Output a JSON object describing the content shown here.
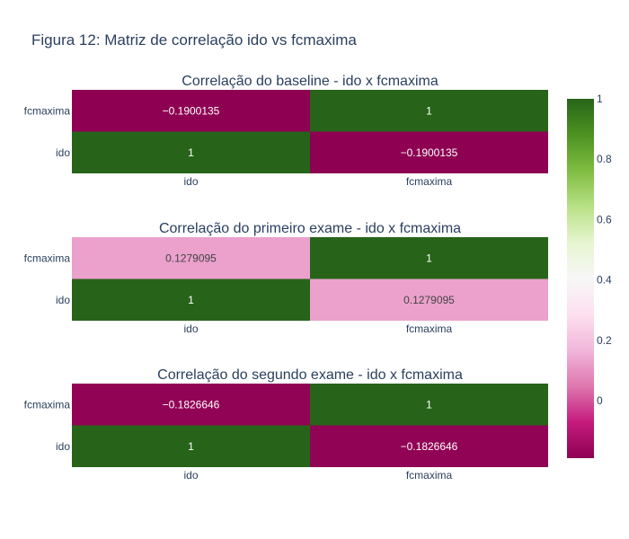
{
  "figure_title": "Figura 12: Matriz de correlação ido vs fcmaxima",
  "chart_data": [
    {
      "type": "heatmap",
      "title": "Correlação do baseline - ido x fcmaxima",
      "x": [
        "ido",
        "fcmaxima"
      ],
      "y": [
        "ido",
        "fcmaxima"
      ],
      "z": [
        [
          1,
          -0.1900135
        ],
        [
          -0.1900135,
          1
        ]
      ],
      "cell_text": [
        [
          "1",
          "−0.1900135"
        ],
        [
          "−0.1900135",
          "1"
        ]
      ]
    },
    {
      "type": "heatmap",
      "title": "Correlação do primeiro exame - ido x fcmaxima",
      "x": [
        "ido",
        "fcmaxima"
      ],
      "y": [
        "ido",
        "fcmaxima"
      ],
      "z": [
        [
          1,
          0.1279095
        ],
        [
          0.1279095,
          1
        ]
      ],
      "cell_text": [
        [
          "1",
          "0.1279095"
        ],
        [
          "0.1279095",
          "1"
        ]
      ]
    },
    {
      "type": "heatmap",
      "title": "Correlação do segundo exame - ido x fcmaxima",
      "x": [
        "ido",
        "fcmaxima"
      ],
      "y": [
        "ido",
        "fcmaxima"
      ],
      "z": [
        [
          1,
          -0.1826646
        ],
        [
          -0.1826646,
          1
        ]
      ],
      "cell_text": [
        [
          "1",
          "−0.1826646"
        ],
        [
          "−0.1826646",
          "1"
        ]
      ]
    }
  ],
  "colorbar": {
    "colorscale": "PiYG",
    "range": [
      -0.1900135,
      1
    ],
    "tick_values": [
      0,
      0.2,
      0.4,
      0.6,
      0.8,
      1
    ],
    "tick_labels": [
      "0",
      "0.2",
      "0.4",
      "0.6",
      "0.8",
      "1"
    ],
    "colors": [
      "#8e0152",
      "#c51b7d",
      "#de77ae",
      "#f1b6da",
      "#fde0ef",
      "#f7f7f7",
      "#e6f5d0",
      "#b8e186",
      "#7fbc41",
      "#4d9221",
      "#276419"
    ]
  }
}
